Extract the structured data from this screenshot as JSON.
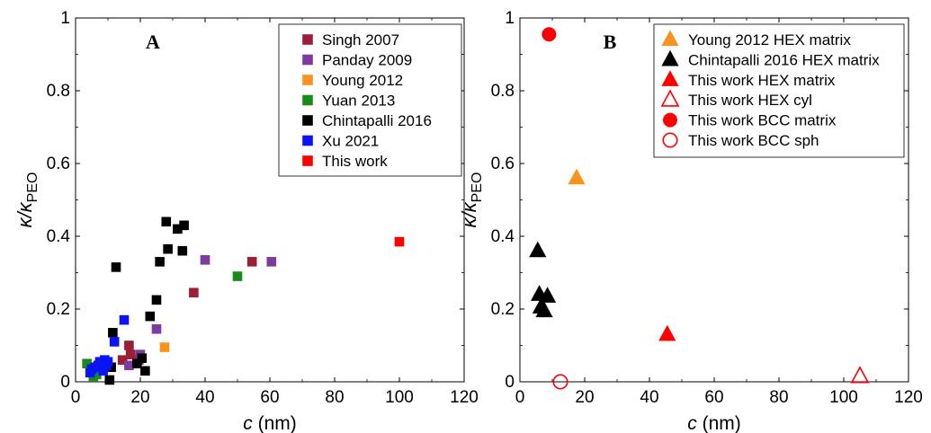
{
  "chart_data": [
    {
      "type": "scatter",
      "panel_label": "A",
      "xlabel_var": "c",
      "xlabel_unit": " (nm)",
      "ylabel_main": "κ/κ",
      "ylabel_sub": "PEO",
      "xlim": [
        0,
        120
      ],
      "ylim": [
        0,
        1
      ],
      "xticks": [
        "0",
        "20",
        "40",
        "60",
        "80",
        "100",
        "120"
      ],
      "yticks": [
        "0",
        "0.2",
        "0.4",
        "0.6",
        "0.8",
        "1"
      ],
      "grid": false,
      "legend_position": "top-right",
      "series": [
        {
          "name": "Singh 2007",
          "color": "#9b1d36",
          "marker": "square-filled",
          "points": [
            [
              14.5,
              0.06
            ],
            [
              16.5,
              0.1
            ],
            [
              17,
              0.075
            ],
            [
              19.5,
              0.06
            ],
            [
              36.5,
              0.245
            ],
            [
              54.5,
              0.33
            ]
          ]
        },
        {
          "name": "Panday 2009",
          "color": "#7e3a9c",
          "marker": "square-filled",
          "points": [
            [
              16.5,
              0.045
            ],
            [
              20,
              0.075
            ],
            [
              25,
              0.145
            ],
            [
              40,
              0.335
            ],
            [
              60.5,
              0.33
            ]
          ]
        },
        {
          "name": "Young 2012",
          "color": "#f7931e",
          "marker": "square-filled",
          "points": [
            [
              27.5,
              0.095
            ]
          ]
        },
        {
          "name": "Yuan 2013",
          "color": "#1a8a1a",
          "marker": "square-filled",
          "points": [
            [
              3.5,
              0.05
            ],
            [
              5.5,
              0.015
            ],
            [
              6.5,
              0.02
            ],
            [
              50,
              0.29
            ]
          ]
        },
        {
          "name": "Chintapalli 2016",
          "color": "#000000",
          "marker": "square-filled",
          "points": [
            [
              10.5,
              0.005
            ],
            [
              11,
              0.04
            ],
            [
              11.5,
              0.135
            ],
            [
              12.5,
              0.315
            ],
            [
              19,
              0.05
            ],
            [
              20.5,
              0.065
            ],
            [
              21.5,
              0.03
            ],
            [
              23,
              0.18
            ],
            [
              25,
              0.225
            ],
            [
              26,
              0.33
            ],
            [
              28,
              0.44
            ],
            [
              28.5,
              0.365
            ],
            [
              31.5,
              0.42
            ],
            [
              33,
              0.36
            ],
            [
              33.5,
              0.43
            ]
          ]
        },
        {
          "name": "Xu 2021",
          "color": "#0a14f5",
          "marker": "square-filled",
          "points": [
            [
              4.5,
              0.025
            ],
            [
              5,
              0.035
            ],
            [
              6,
              0.04
            ],
            [
              7,
              0.045
            ],
            [
              7.5,
              0.055
            ],
            [
              8.5,
              0.03
            ],
            [
              9,
              0.06
            ],
            [
              9.5,
              0.045
            ],
            [
              10,
              0.055
            ],
            [
              12,
              0.11
            ],
            [
              15,
              0.17
            ]
          ]
        },
        {
          "name": "This work",
          "color": "#ff0000",
          "marker": "square-filled",
          "points": [
            [
              100,
              0.385
            ]
          ]
        }
      ]
    },
    {
      "type": "scatter",
      "panel_label": "B",
      "xlabel_var": "c",
      "xlabel_unit": " (nm)",
      "ylabel_main": "κ/κ",
      "ylabel_sub": "PEO",
      "xlim": [
        0,
        120
      ],
      "ylim": [
        0,
        1
      ],
      "xticks": [
        "0",
        "20",
        "40",
        "60",
        "80",
        "100",
        "120"
      ],
      "yticks": [
        "0",
        "0.2",
        "0.4",
        "0.6",
        "0.8",
        "1"
      ],
      "grid": false,
      "legend_position": "top-right",
      "series": [
        {
          "name": "Young 2012 HEX matrix",
          "color": "#f7931e",
          "marker": "triangle-filled",
          "points": [
            [
              17.5,
              0.56
            ]
          ]
        },
        {
          "name": "Chintapalli 2016 HEX matrix",
          "color": "#000000",
          "marker": "triangle-filled",
          "points": [
            [
              5.5,
              0.36
            ],
            [
              6,
              0.24
            ],
            [
              6.5,
              0.205
            ],
            [
              7.5,
              0.195
            ],
            [
              8.5,
              0.235
            ]
          ]
        },
        {
          "name": "This work HEX matrix",
          "color": "#ff0000",
          "marker": "triangle-filled",
          "points": [
            [
              45.5,
              0.13
            ]
          ]
        },
        {
          "name": "This work HEX cyl",
          "color": "#ff0000",
          "marker": "triangle-open",
          "points": [
            [
              105,
              0.015
            ]
          ]
        },
        {
          "name": "This work BCC matrix",
          "color": "#ff0000",
          "marker": "circle-filled",
          "points": [
            [
              9,
              0.955
            ]
          ]
        },
        {
          "name": "This work BCC sph",
          "color": "#ff0000",
          "marker": "circle-open",
          "points": [
            [
              12.5,
              0.0
            ]
          ]
        }
      ]
    }
  ]
}
